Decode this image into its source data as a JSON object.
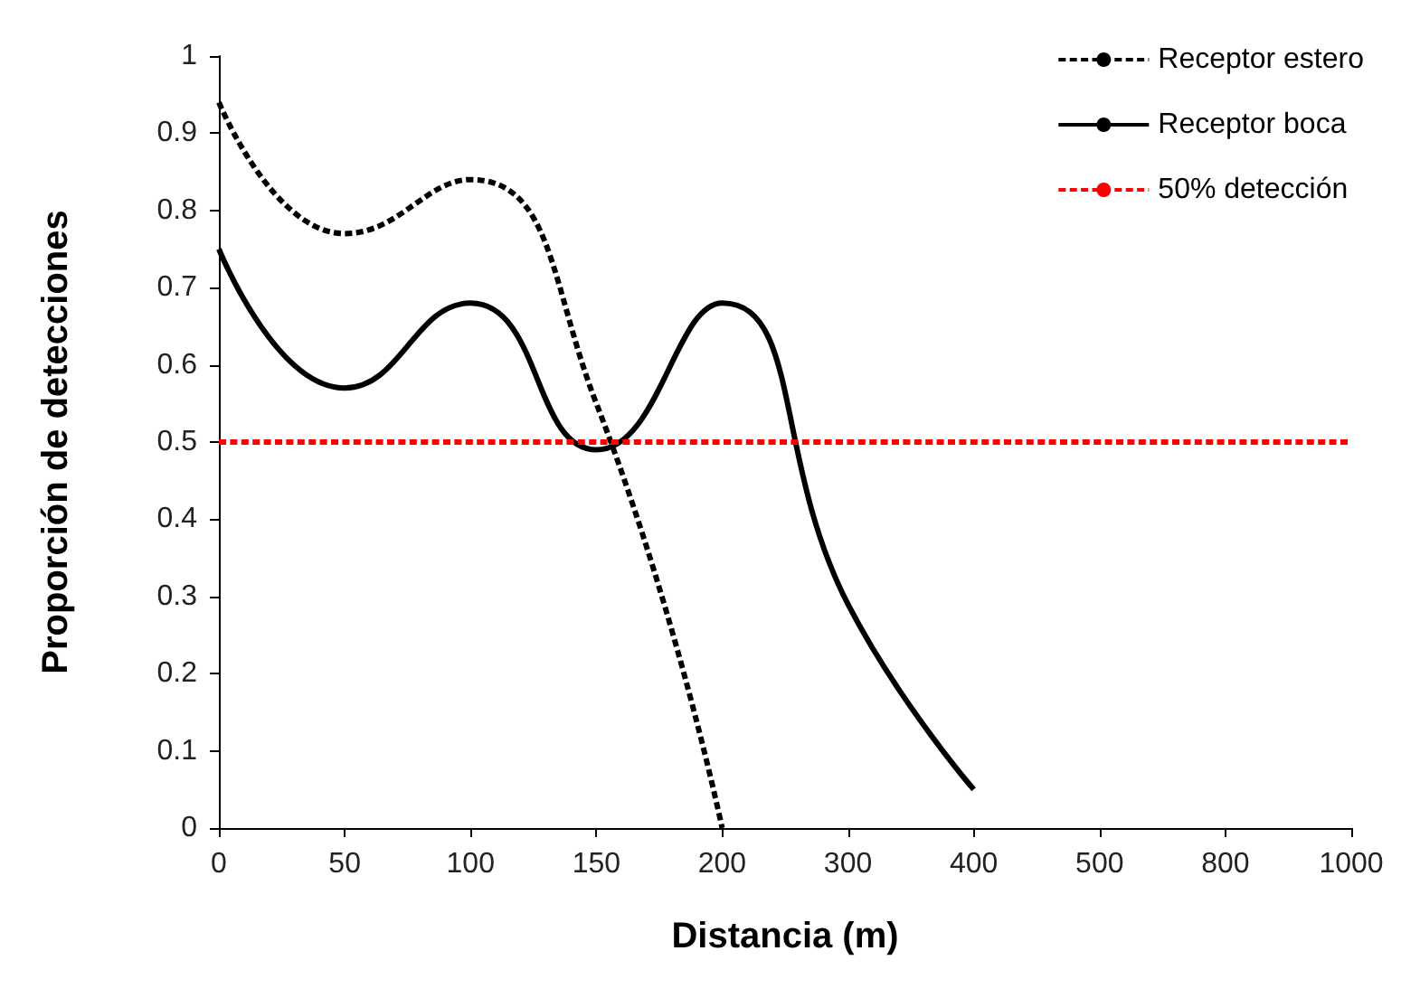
{
  "chart_data": {
    "type": "line",
    "xlabel": "Distancia (m)",
    "ylabel": "Proporción de detecciones",
    "categories": [
      "0",
      "50",
      "100",
      "150",
      "200",
      "300",
      "400",
      "500",
      "800",
      "1000"
    ],
    "series": [
      {
        "name": "Receptor estero",
        "color": "#000000",
        "line_style": "dashed",
        "values": [
          0.94,
          0.77,
          0.84,
          0.55,
          0,
          null,
          null,
          null,
          null,
          null
        ]
      },
      {
        "name": "Receptor boca",
        "color": "#000000",
        "line_style": "solid",
        "values": [
          0.75,
          0.57,
          0.68,
          0.49,
          0.68,
          0.29,
          0.05,
          null,
          null,
          null
        ]
      }
    ],
    "ref_lines": [
      {
        "axis": "y",
        "value": 0.5,
        "label": "50% detección",
        "color": "#ff0000",
        "line_style": "dashed"
      }
    ],
    "ylim": [
      0,
      1
    ],
    "yticks": [
      0,
      0.1,
      0.2,
      0.3,
      0.4,
      0.5,
      0.6,
      0.7,
      0.8,
      0.9,
      1
    ],
    "grid": false,
    "legend": "top right",
    "marker": "none"
  }
}
